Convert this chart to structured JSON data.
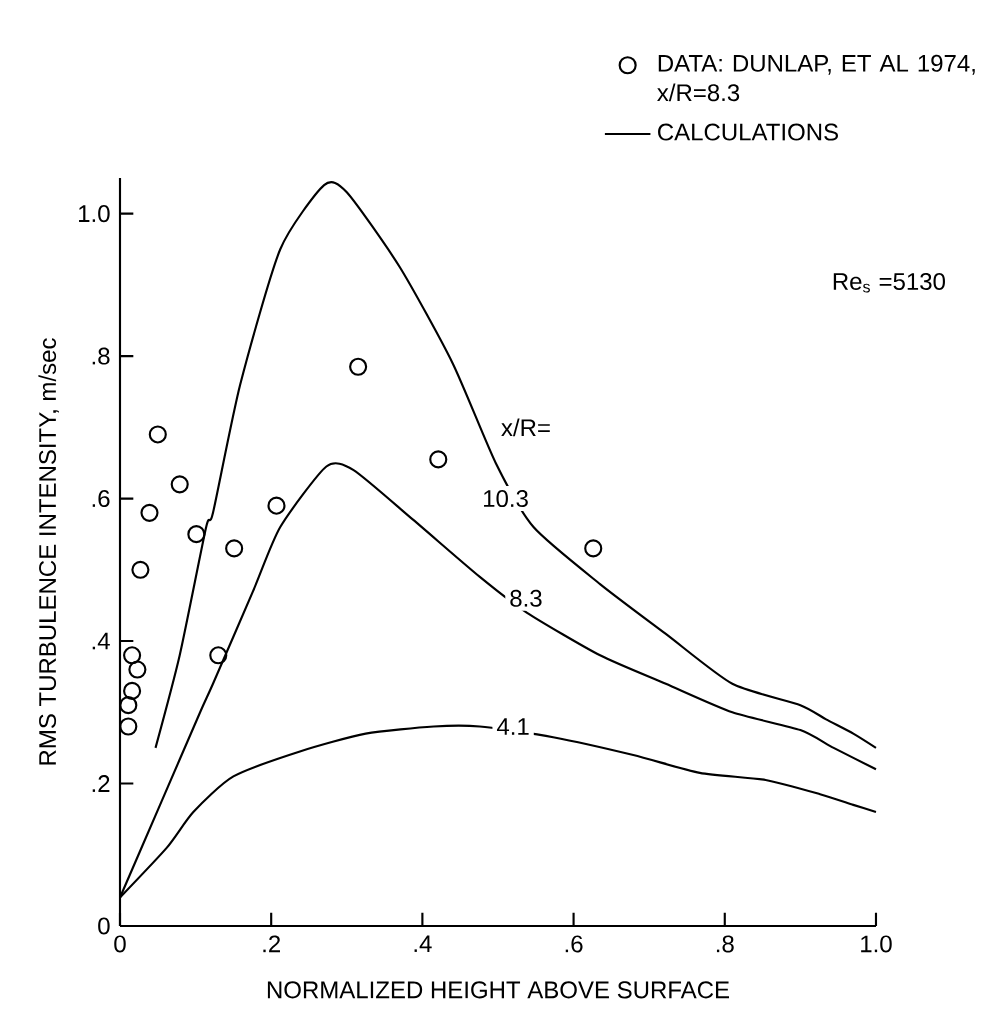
{
  "chart_data": {
    "type": "line",
    "xlabel": "NORMALIZED HEIGHT ABOVE SURFACE",
    "ylabel": "RMS TURBULENCE INTENSITY, m/sec",
    "xlim": [
      0,
      1.0
    ],
    "ylim": [
      0,
      1.05
    ],
    "xticks": [
      0,
      {
        "value": 0.2,
        "label": ".2"
      },
      {
        "value": 0.4,
        "label": ".4"
      },
      {
        "value": 0.6,
        "label": ".6"
      },
      {
        "value": 0.8,
        "label": ".8"
      },
      {
        "value": 1.0,
        "label": "1.0"
      }
    ],
    "yticks": [
      0,
      {
        "value": 0.2,
        "label": ".2"
      },
      {
        "value": 0.4,
        "label": ".4"
      },
      {
        "value": 0.6,
        "label": ".6"
      },
      {
        "value": 0.8,
        "label": ".8"
      },
      {
        "value": 1.0,
        "label": "1.0"
      }
    ],
    "grid": false,
    "legend": "top right",
    "series": [
      {
        "name": "DATA: DUNLAP, ET AL 1974, x/R=8.3",
        "type": "scatter",
        "marker": "circle",
        "color": "#000000",
        "x": [
          0.011,
          0.011,
          0.016,
          0.023,
          0.016,
          0.027,
          0.039,
          0.05,
          0.079,
          0.101,
          0.151,
          0.13,
          0.207,
          0.315,
          0.421,
          0.626
        ],
        "values": [
          0.28,
          0.31,
          0.33,
          0.36,
          0.38,
          0.5,
          0.58,
          0.69,
          0.62,
          0.55,
          0.53,
          0.38,
          0.59,
          0.785,
          0.655,
          0.53
        ]
      },
      {
        "name": "CALCULATIONS",
        "color": "#000000",
        "x": [
          0.047,
          0.079,
          0.114,
          0.123,
          0.159,
          0.212,
          0.27,
          0.3,
          0.37,
          0.44,
          0.497,
          0.547,
          0.635,
          0.722,
          0.81,
          0.9,
          0.934,
          0.97,
          1.0
        ],
        "values": [
          0.25,
          0.38,
          0.56,
          0.58,
          0.76,
          0.95,
          1.04,
          1.03,
          0.925,
          0.79,
          0.65,
          0.56,
          0.48,
          0.41,
          0.34,
          0.31,
          0.29,
          0.27,
          0.25
        ]
      },
      {
        "color": "#000000",
        "x": [
          0,
          0.053,
          0.106,
          0.123,
          0.176,
          0.212,
          0.273,
          0.309,
          0.388,
          0.476,
          0.538,
          0.635,
          0.722,
          0.81,
          0.9,
          0.944,
          1.0
        ],
        "values": [
          0.04,
          0.17,
          0.3,
          0.34,
          0.47,
          0.56,
          0.645,
          0.64,
          0.57,
          0.49,
          0.44,
          0.38,
          0.34,
          0.3,
          0.275,
          0.25,
          0.22
        ]
      },
      {
        "color": "#000000",
        "x": [
          0,
          0.062,
          0.097,
          0.15,
          0.238,
          0.325,
          0.415,
          0.476,
          0.573,
          0.679,
          0.767,
          0.854,
          0.926,
          0.97,
          1.0
        ],
        "values": [
          0.04,
          0.11,
          0.16,
          0.21,
          0.245,
          0.27,
          0.28,
          0.28,
          0.265,
          0.24,
          0.215,
          0.205,
          0.185,
          0.17,
          0.16
        ]
      }
    ],
    "annotations": [
      "Re$_{s}$ =5130",
      {
        "text": "x/R=",
        "x": 0.537,
        "y": 0.7
      },
      {
        "text": "10.3",
        "x": 0.51,
        "y": 0.6
      },
      {
        "text": "8.3",
        "x": 0.537,
        "y": 0.46
      },
      {
        "text": "4.1",
        "x": 0.52,
        "y": 0.28
      }
    ]
  }
}
